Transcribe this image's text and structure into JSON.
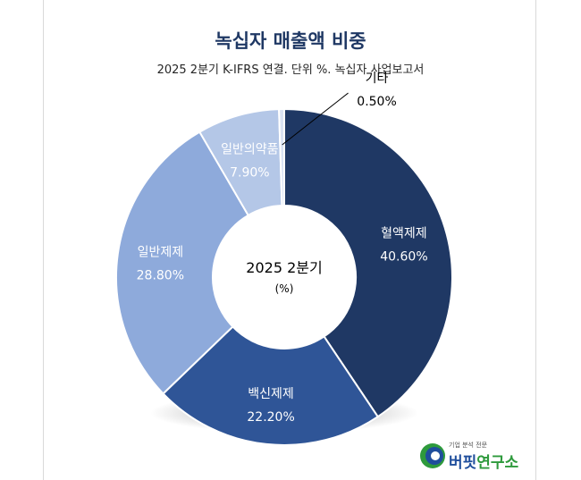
{
  "chart_data": {
    "type": "pie",
    "variant": "donut",
    "title": "녹십자 매출액 비중",
    "subtitle": "2025 2분기 K-IFRS 연결. 단위 %. 녹십자 사업보고서",
    "center_label": "2025 2분기",
    "center_unit": "(%)",
    "slices": [
      {
        "label": "혈액제제",
        "value": 40.6,
        "display": "40.60%",
        "color": "#1f3864"
      },
      {
        "label": "백신제제",
        "value": 22.2,
        "display": "22.20%",
        "color": "#2f5597"
      },
      {
        "label": "일반제제",
        "value": 28.8,
        "display": "28.80%",
        "color": "#8eaadb"
      },
      {
        "label": "일반의약품",
        "value": 7.9,
        "display": "7.90%",
        "color": "#b4c7e7"
      },
      {
        "label": "기타",
        "value": 0.5,
        "display": "0.50%",
        "color": "#dae3f3"
      }
    ]
  },
  "logo": {
    "tagline": "기업 분석 전문",
    "name_part1": "버핏",
    "name_part2": "연구소"
  }
}
